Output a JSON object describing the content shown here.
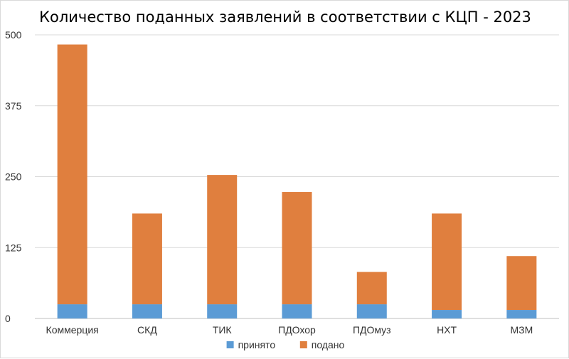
{
  "chart_data": {
    "type": "bar",
    "stacked": true,
    "title": "Количество поданных заявлений в соответствии с КЦП - 2023",
    "xlabel": "",
    "ylabel": "",
    "categories": [
      "Коммерция",
      "СКД",
      "ТИК",
      "ПДОхор",
      "ПДОмуз",
      "НХТ",
      "МЗМ"
    ],
    "series": [
      {
        "name": "принято",
        "color": "#5b9bd5",
        "values": [
          25,
          25,
          25,
          25,
          25,
          15,
          15
        ]
      },
      {
        "name": "подано",
        "color": "#e07f3e",
        "values": [
          458,
          160,
          228,
          198,
          57,
          170,
          95
        ]
      }
    ],
    "ylim": [
      0,
      500
    ],
    "yticks": [
      "0",
      "125",
      "250",
      "375",
      "500"
    ],
    "grid": true,
    "legend_position": "bottom"
  }
}
